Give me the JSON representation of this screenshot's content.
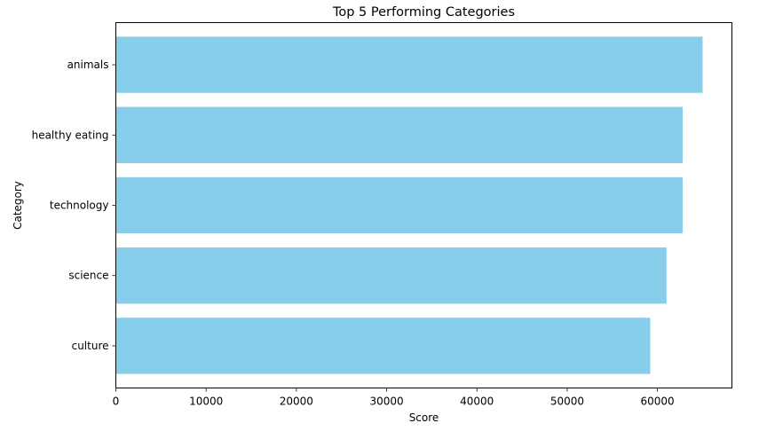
{
  "chart_data": {
    "type": "bar",
    "orientation": "horizontal",
    "title": "Top 5 Performing Categories",
    "xlabel": "Score",
    "ylabel": "Category",
    "categories": [
      "animals",
      "healthy eating",
      "technology",
      "science",
      "culture"
    ],
    "values": [
      65000,
      62800,
      62800,
      61000,
      59200
    ],
    "xlim": [
      0,
      68250
    ],
    "xticks": [
      0,
      10000,
      20000,
      30000,
      40000,
      50000,
      60000
    ],
    "grid": false,
    "bar_color": "#87CEEB"
  }
}
